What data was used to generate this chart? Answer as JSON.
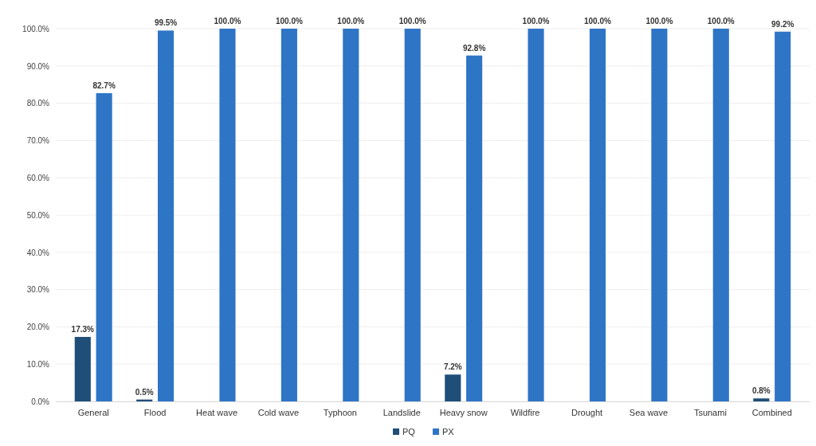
{
  "chart_data": {
    "type": "bar",
    "categories": [
      "General",
      "Flood",
      "Heat wave",
      "Cold wave",
      "Typhoon",
      "Landslide",
      "Heavy snow",
      "Wildfire",
      "Drought",
      "Sea wave",
      "Tsunami",
      "Combined"
    ],
    "series": [
      {
        "name": "PQ",
        "color": "#1f4e79",
        "values": [
          17.3,
          0.5,
          0,
          0,
          0,
          0,
          7.2,
          0,
          0,
          0,
          0,
          0.8
        ],
        "value_labels": [
          "17.3%",
          "0.5%",
          null,
          null,
          null,
          null,
          "7.2%",
          null,
          null,
          null,
          null,
          "0.8%"
        ]
      },
      {
        "name": "PX",
        "color": "#2e75c6",
        "values": [
          82.7,
          99.5,
          100,
          100,
          100,
          100,
          92.8,
          100,
          100,
          100,
          100,
          99.2
        ],
        "value_labels": [
          "82.7%",
          "99.5%",
          "100.0%",
          "100.0%",
          "100.0%",
          "100.0%",
          "92.8%",
          "100.0%",
          "100.0%",
          "100.0%",
          "100.0%",
          "99.2%"
        ]
      }
    ],
    "ylim": [
      0,
      100
    ],
    "yticks": [
      {
        "value": 0,
        "label": "0.0%"
      },
      {
        "value": 10,
        "label": "10.0%"
      },
      {
        "value": 20,
        "label": "20.0%"
      },
      {
        "value": 30,
        "label": "30.0%"
      },
      {
        "value": 40,
        "label": "40.0%"
      },
      {
        "value": 50,
        "label": "50.0%"
      },
      {
        "value": 60,
        "label": "60.0%"
      },
      {
        "value": 70,
        "label": "70.0%"
      },
      {
        "value": 80,
        "label": "80.0%"
      },
      {
        "value": 90,
        "label": "90.0%"
      },
      {
        "value": 100,
        "label": "100.0%"
      }
    ],
    "grid": "y",
    "legend": "bottom"
  }
}
